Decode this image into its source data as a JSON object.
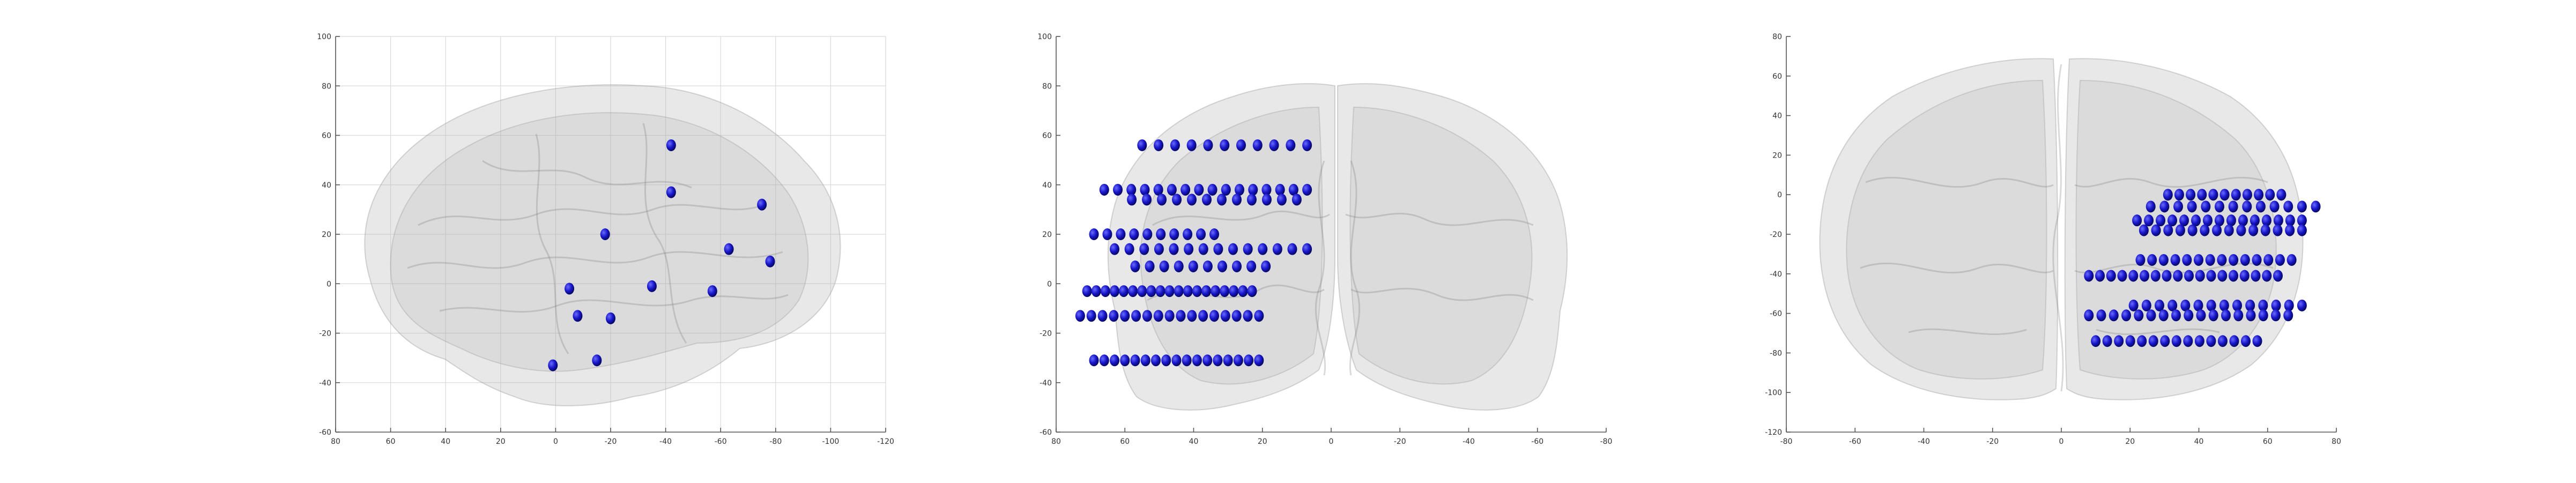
{
  "panels": [
    {
      "id": "sagittal",
      "view": "sagittal",
      "x_ticks": [
        "80",
        "60",
        "40",
        "20",
        "0",
        "-20",
        "-40",
        "-60",
        "-80",
        "-100",
        "-120"
      ],
      "y_ticks": [
        "100",
        "80",
        "60",
        "40",
        "20",
        "0",
        "-20",
        "-40",
        "-60"
      ],
      "xlim": [
        80,
        -120
      ],
      "ylim": [
        -60,
        100
      ],
      "grid": true,
      "electrodes": [
        [
          -42,
          56
        ],
        [
          -42,
          37
        ],
        [
          -75,
          32
        ],
        [
          -18,
          20
        ],
        [
          -63,
          14
        ],
        [
          -78,
          9
        ],
        [
          -35,
          -1
        ],
        [
          -57,
          -3
        ],
        [
          -5,
          -2
        ],
        [
          -8,
          -13
        ],
        [
          -20,
          -14
        ],
        [
          -15,
          -31
        ],
        [
          1,
          -33
        ]
      ]
    },
    {
      "id": "coronal",
      "view": "coronal",
      "x_ticks": [
        "80",
        "60",
        "40",
        "20",
        "0",
        "-20",
        "-40",
        "-60",
        "-80"
      ],
      "y_ticks": [
        "100",
        "80",
        "60",
        "40",
        "20",
        "0",
        "-20",
        "-40",
        "-60"
      ],
      "xlim": [
        80,
        -80
      ],
      "ylim": [
        -60,
        100
      ],
      "grid": false,
      "electrode_rows": [
        {
          "y": 56,
          "x_from": 55,
          "x_to": 7,
          "count": 11
        },
        {
          "y": 38,
          "x_from": 66,
          "x_to": 7,
          "count": 16
        },
        {
          "y": 34,
          "x_from": 58,
          "x_to": 10,
          "count": 12
        },
        {
          "y": 20,
          "x_from": 69,
          "x_to": 34,
          "count": 10
        },
        {
          "y": 14,
          "x_from": 63,
          "x_to": 7,
          "count": 14
        },
        {
          "y": 7,
          "x_from": 57,
          "x_to": 19,
          "count": 10
        },
        {
          "y": -3,
          "x_from": 71,
          "x_to": 23,
          "count": 19
        },
        {
          "y": -13,
          "x_from": 73,
          "x_to": 21,
          "count": 17
        },
        {
          "y": -31,
          "x_from": 69,
          "x_to": 21,
          "count": 17
        }
      ]
    },
    {
      "id": "axial",
      "view": "axial",
      "x_ticks": [
        "-80",
        "-60",
        "-40",
        "-20",
        "0",
        "20",
        "40",
        "60",
        "80"
      ],
      "y_ticks": [
        "80",
        "60",
        "40",
        "20",
        "0",
        "-20",
        "-40",
        "-60",
        "-80",
        "-100",
        "-120"
      ],
      "xlim": [
        -80,
        80
      ],
      "ylim": [
        -120,
        80
      ],
      "grid": false,
      "electrode_rows": [
        {
          "y": 0,
          "x_from": 31,
          "x_to": 64,
          "count": 11
        },
        {
          "y": -6,
          "x_from": 26,
          "x_to": 74,
          "count": 13
        },
        {
          "y": -13,
          "x_from": 22,
          "x_to": 70,
          "count": 15
        },
        {
          "y": -18,
          "x_from": 24,
          "x_to": 70,
          "count": 14
        },
        {
          "y": -33,
          "x_from": 23,
          "x_to": 67,
          "count": 14
        },
        {
          "y": -41,
          "x_from": 8,
          "x_to": 63,
          "count": 18
        },
        {
          "y": -56,
          "x_from": 21,
          "x_to": 70,
          "count": 14
        },
        {
          "y": -61,
          "x_from": 8,
          "x_to": 66,
          "count": 17
        },
        {
          "y": -74,
          "x_from": 10,
          "x_to": 57,
          "count": 15
        }
      ]
    }
  ]
}
